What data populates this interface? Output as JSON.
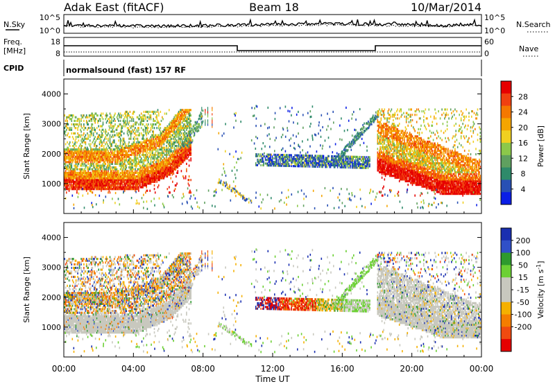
{
  "header": {
    "radar": "Adak East (fitACF)",
    "beam": "Beam 18",
    "date": "10/Mar/2014"
  },
  "noise_panel": {
    "left_label": "N.Sky",
    "left_ticks": [
      "10^5",
      "10^0"
    ],
    "right_label": "N.Search",
    "right_ticks": [
      "10^5",
      "10^0"
    ]
  },
  "freq_panel": {
    "left_label_1": "Freq.",
    "left_label_2": "[MHz]",
    "left_ticks": [
      "18",
      "8"
    ],
    "right_label": "Nave",
    "right_ticks": [
      "60",
      "0"
    ]
  },
  "cpid": {
    "label": "CPID",
    "value": "normalsound (fast) 157 RF"
  },
  "x_axis": {
    "label": "Time UT",
    "ticks": [
      "00:00",
      "04:00",
      "08:00",
      "12:00",
      "16:00",
      "20:00",
      "00:00"
    ]
  },
  "chart_data": [
    {
      "type": "heatmap",
      "xlabel": "Time UT",
      "ylabel": "Slant Range [km]",
      "x_range_hours": [
        0,
        24
      ],
      "ylim": [
        0,
        4500
      ],
      "yticks": [
        "1000",
        "2000",
        "3000",
        "4000"
      ],
      "colorbar": {
        "label": "Power [dB]",
        "ticks": [
          "4",
          "8",
          "12",
          "16",
          "20",
          "24",
          "28"
        ],
        "colors": [
          "#0a1ee6",
          "#2850b4",
          "#2e8a6a",
          "#5fa05f",
          "#8cc84a",
          "#f0d020",
          "#f5a500",
          "#f57800",
          "#f04010",
          "#e60000"
        ]
      }
    },
    {
      "type": "heatmap",
      "xlabel": "Time UT",
      "ylabel": "Slant Range [km]",
      "x_range_hours": [
        0,
        24
      ],
      "ylim": [
        0,
        4500
      ],
      "yticks": [
        "1000",
        "2000",
        "3000",
        "4000"
      ],
      "colorbar": {
        "label": "Velocity [m s^-1]",
        "ticks": [
          "200",
          "100",
          "50",
          "15",
          "-15",
          "-50",
          "-100",
          "-200"
        ],
        "colors": [
          "#1a2fb0",
          "#3050c8",
          "#2e9a2e",
          "#6cd034",
          "#c8c8be",
          "#c8c8be",
          "#f5b000",
          "#f57d00",
          "#f04a10",
          "#e60000"
        ]
      }
    }
  ]
}
